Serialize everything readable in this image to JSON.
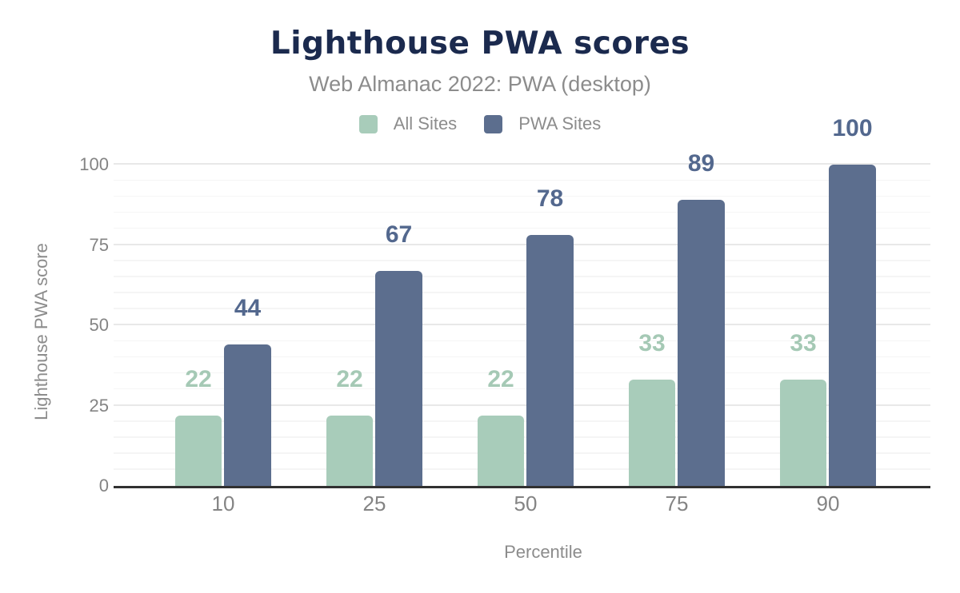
{
  "chart_data": {
    "type": "bar",
    "title": "Lighthouse PWA scores",
    "subtitle": "Web Almanac 2022: PWA (desktop)",
    "xlabel": "Percentile",
    "ylabel": "Lighthouse PWA score",
    "categories": [
      "10",
      "25",
      "50",
      "75",
      "90"
    ],
    "series": [
      {
        "name": "All Sites",
        "values": [
          22,
          22,
          22,
          33,
          33
        ],
        "color": "#a8ccba",
        "label_color": "#a5c9b5"
      },
      {
        "name": "PWA Sites",
        "values": [
          44,
          67,
          78,
          89,
          100
        ],
        "color": "#5c6e8e",
        "label_color": "#53688e"
      }
    ],
    "ylim": [
      0,
      100
    ],
    "yticks": [
      0,
      25,
      50,
      75,
      100
    ],
    "minor_gridline_step": 5,
    "grid": true,
    "legend_position": "top",
    "bar_labels": true
  },
  "colors": {
    "title": "#1b2a4e",
    "subtitle": "#8c8c8c",
    "axis_text": "#848484",
    "grid_major": "#e8e8e8",
    "grid_minor": "#f5f5f5",
    "baseline": "#313131",
    "background": "#ffffff"
  }
}
